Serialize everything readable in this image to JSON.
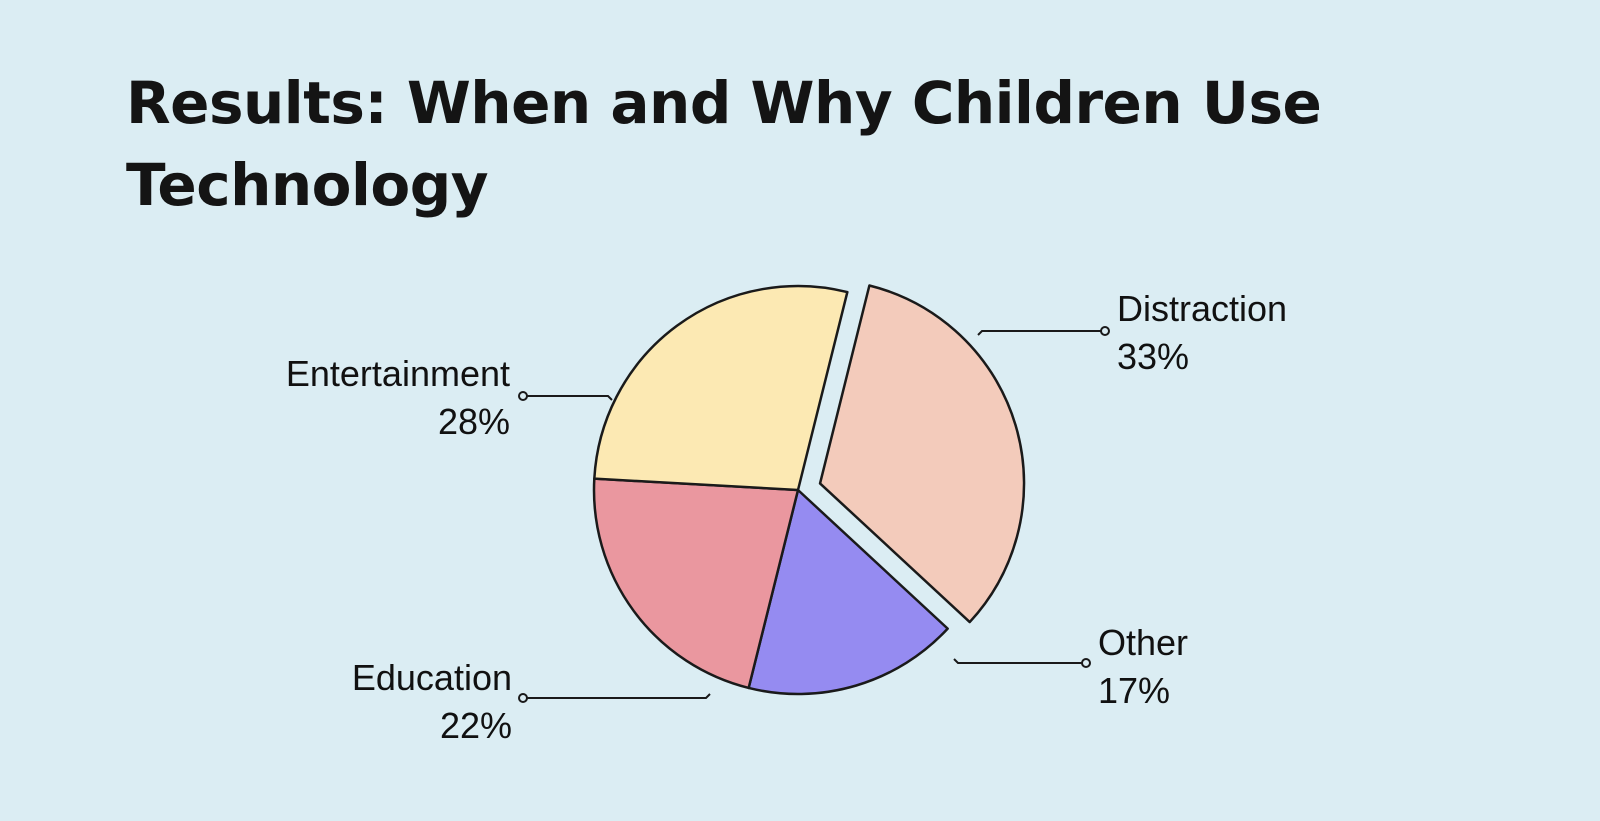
{
  "title": "Results: When and Why Children Use Technology",
  "chart_data": {
    "type": "pie",
    "start_angle_deg": 14,
    "direction": "clockwise",
    "exploded": "Distraction",
    "slices": [
      {
        "label": "Distraction",
        "value": 33,
        "value_label": "33%",
        "color": "#f3cbbb"
      },
      {
        "label": "Other",
        "value": 17,
        "value_label": "17%",
        "color": "#958bf1"
      },
      {
        "label": "Education",
        "value": 22,
        "value_label": "22%",
        "color": "#ea979f"
      },
      {
        "label": "Entertainment",
        "value": 28,
        "value_label": "28%",
        "color": "#fce9b3"
      }
    ]
  }
}
